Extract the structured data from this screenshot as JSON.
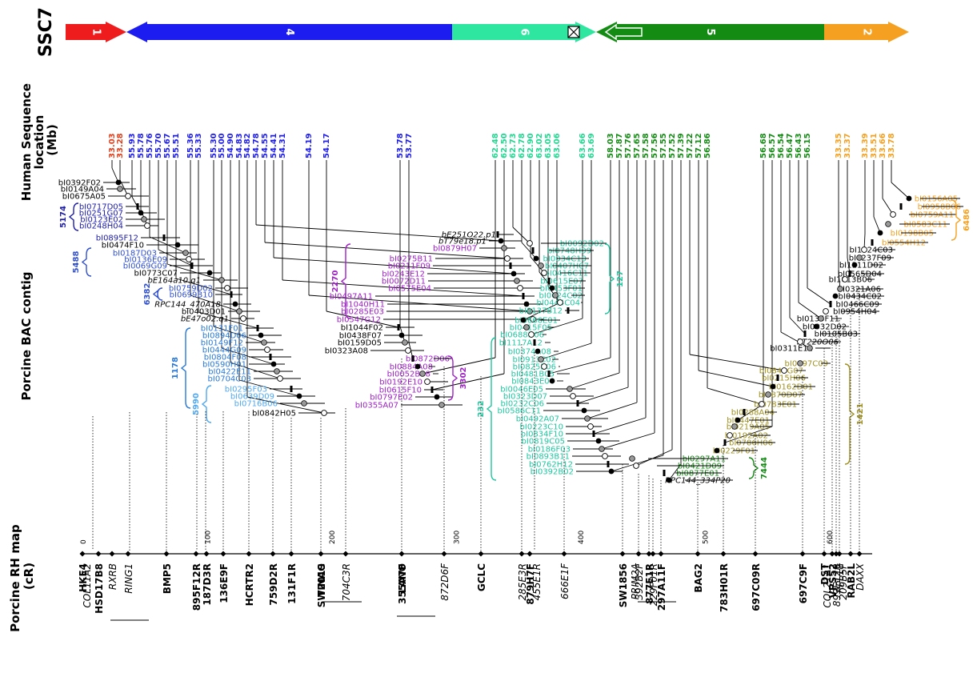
{
  "chromosome": "SSC7",
  "axis_titles": {
    "human": [
      "Human Sequence",
      "location",
      "(Mb)"
    ],
    "bac": "Porcine BAC contig",
    "rh": [
      "Porcine RH map",
      "(cR)"
    ]
  },
  "segments": [
    {
      "label": "1",
      "color": "#ee1c1c",
      "dir": "right"
    },
    {
      "label": "4",
      "color": "#1c1cf0",
      "dir": "left"
    },
    {
      "label": "6",
      "color": "#2ee6a0",
      "dir": "right"
    },
    {
      "label": "5",
      "color": "#148c14",
      "dir": "left"
    },
    {
      "label": "2",
      "color": "#f5a020",
      "dir": "right"
    }
  ],
  "human_locations": [
    {
      "v": "33.03",
      "c": "#e0401c"
    },
    {
      "v": "33.28",
      "c": "#e0401c"
    },
    {
      "v": "55.93",
      "c": "#1c1cf0"
    },
    {
      "v": "55.78",
      "c": "#1c1cf0"
    },
    {
      "v": "55.76",
      "c": "#1c1cf0"
    },
    {
      "v": "55.70",
      "c": "#1c1cf0"
    },
    {
      "v": "55.67",
      "c": "#1c1cf0"
    },
    {
      "v": "55.51",
      "c": "#1c1cf0"
    },
    {
      "v": "55.36",
      "c": "#1c1cf0"
    },
    {
      "v": "55.33",
      "c": "#1c1cf0"
    },
    {
      "v": "55.30",
      "c": "#1c1cf0"
    },
    {
      "v": "55.00",
      "c": "#1c1cf0"
    },
    {
      "v": "54.90",
      "c": "#1c1cf0"
    },
    {
      "v": "54.83",
      "c": "#1c1cf0"
    },
    {
      "v": "54.82",
      "c": "#1c1cf0"
    },
    {
      "v": "54.78",
      "c": "#1c1cf0"
    },
    {
      "v": "54.55",
      "c": "#1c1cf0"
    },
    {
      "v": "54.41",
      "c": "#1c1cf0"
    },
    {
      "v": "54.31",
      "c": "#1c1cf0"
    },
    {
      "v": "54.19",
      "c": "#1c1cf0"
    },
    {
      "v": "54.17",
      "c": "#1c1cf0"
    },
    {
      "v": "53.78",
      "c": "#1c1cf0"
    },
    {
      "v": "53.77",
      "c": "#1c1cf0"
    },
    {
      "v": "62.48",
      "c": "#20d890"
    },
    {
      "v": "62.50",
      "c": "#20d890"
    },
    {
      "v": "62.73",
      "c": "#20d890"
    },
    {
      "v": "62.78",
      "c": "#20d890"
    },
    {
      "v": "62.90",
      "c": "#20d890"
    },
    {
      "v": "63.02",
      "c": "#20d890"
    },
    {
      "v": "63.05",
      "c": "#20d890"
    },
    {
      "v": "63.06",
      "c": "#20d890"
    },
    {
      "v": "63.66",
      "c": "#20d890"
    },
    {
      "v": "63.69",
      "c": "#20d890"
    },
    {
      "v": "58.03",
      "c": "#148c14"
    },
    {
      "v": "57.87",
      "c": "#148c14"
    },
    {
      "v": "57.76",
      "c": "#148c14"
    },
    {
      "v": "57.65",
      "c": "#148c14"
    },
    {
      "v": "57.58",
      "c": "#148c14"
    },
    {
      "v": "57.56",
      "c": "#148c14"
    },
    {
      "v": "57.55",
      "c": "#148c14"
    },
    {
      "v": "57.52",
      "c": "#148c14"
    },
    {
      "v": "57.39",
      "c": "#148c14"
    },
    {
      "v": "57.22",
      "c": "#148c14"
    },
    {
      "v": "57.12",
      "c": "#148c14"
    },
    {
      "v": "56.86",
      "c": "#148c14"
    },
    {
      "v": "56.68",
      "c": "#148c14"
    },
    {
      "v": "56.57",
      "c": "#148c14"
    },
    {
      "v": "56.54",
      "c": "#148c14"
    },
    {
      "v": "56.47",
      "c": "#148c14"
    },
    {
      "v": "56.43",
      "c": "#148c14"
    },
    {
      "v": "56.15",
      "c": "#148c14"
    },
    {
      "v": "33.35",
      "c": "#f5a020"
    },
    {
      "v": "33.37",
      "c": "#f5a020"
    },
    {
      "v": "33.39",
      "c": "#f5a020"
    },
    {
      "v": "33.51",
      "c": "#f5a020"
    },
    {
      "v": "33.66",
      "c": "#f5a020"
    },
    {
      "v": "33.78",
      "c": "#f5a020"
    }
  ],
  "bac_clones": [
    {
      "n": "bI0392F02",
      "c": "#000000"
    },
    {
      "n": "bI0149A04",
      "c": "#000000"
    },
    {
      "n": "bI0675A05",
      "c": "#000000"
    },
    {
      "n": "bI0717D05",
      "c": "#1c1ca8"
    },
    {
      "n": "bI0251G07",
      "c": "#1c1ca8"
    },
    {
      "n": "bI0123E02",
      "c": "#1c1ca8"
    },
    {
      "n": "bI0248H04",
      "c": "#1c1ca8"
    },
    {
      "n": "bI0895F12",
      "c": "#1c1ca8"
    },
    {
      "n": "bI0474F10",
      "c": "#000000"
    },
    {
      "n": "bI0187D03",
      "c": "#3050d0"
    },
    {
      "n": "bI0136E09",
      "c": "#3050d0"
    },
    {
      "n": "bI0069G09",
      "c": "#3050d0"
    },
    {
      "n": "bI0773C07",
      "c": "#000000"
    },
    {
      "n": "bE164a10.q1",
      "c": "#000000",
      "i": true
    },
    {
      "n": "bI0759D02",
      "c": "#3050d0"
    },
    {
      "n": "bI0699B10",
      "c": "#3050d0"
    },
    {
      "n": "RPC144_470A18",
      "c": "#000000",
      "i": true
    },
    {
      "n": "bI0403D01",
      "c": "#000000"
    },
    {
      "n": "bE47o02.q1",
      "c": "#000000",
      "i": true
    },
    {
      "n": "bI0131F01",
      "c": "#2878d8"
    },
    {
      "n": "bI0894D06",
      "c": "#2878d8"
    },
    {
      "n": "bI0149F12",
      "c": "#2878d8"
    },
    {
      "n": "bI0444G09",
      "c": "#2878d8"
    },
    {
      "n": "bI0804F08",
      "c": "#2878d8"
    },
    {
      "n": "bI0590H01",
      "c": "#2878d8"
    },
    {
      "n": "bI0422E11",
      "c": "#2878d8"
    },
    {
      "n": "bI0704C03",
      "c": "#2878d8"
    },
    {
      "n": "bI0295F03",
      "c": "#50a8f0"
    },
    {
      "n": "bI0639D09",
      "c": "#50a8f0"
    },
    {
      "n": "bI0716B06",
      "c": "#50a8f0"
    },
    {
      "n": "bI0842H05",
      "c": "#000000"
    },
    {
      "n": "bE251O22.p1",
      "c": "#000000",
      "i": true
    },
    {
      "n": "bT79e18.p1",
      "c": "#000000",
      "i": true
    },
    {
      "n": "bI0879H07",
      "c": "#a020c8"
    },
    {
      "n": "bI0275B11",
      "c": "#a020c8"
    },
    {
      "n": "bI0211F09",
      "c": "#a020c8"
    },
    {
      "n": "bI0243E12",
      "c": "#a020c8"
    },
    {
      "n": "bI0072D11",
      "c": "#a020c8"
    },
    {
      "n": "bI0575E04",
      "c": "#a020c8"
    },
    {
      "n": "bI0497A11",
      "c": "#a020c8"
    },
    {
      "n": "bI1040H11",
      "c": "#a020c8"
    },
    {
      "n": "bI0285E03",
      "c": "#a020c8"
    },
    {
      "n": "bI0547G12",
      "c": "#a020c8"
    },
    {
      "n": "bI1044F02",
      "c": "#000000"
    },
    {
      "n": "bI0438F07",
      "c": "#000000"
    },
    {
      "n": "bI0159D05",
      "c": "#000000"
    },
    {
      "n": "bI0323A08",
      "c": "#000000"
    },
    {
      "n": "bI0872D06",
      "c": "#a020c8"
    },
    {
      "n": "bI0884A08",
      "c": "#a020c8"
    },
    {
      "n": "bI0052B08",
      "c": "#a020c8"
    },
    {
      "n": "bI0192E10",
      "c": "#a020c8"
    },
    {
      "n": "bI0615F10",
      "c": "#a020c8"
    },
    {
      "n": "bI0797E02",
      "c": "#a020c8"
    },
    {
      "n": "bI0355A07",
      "c": "#a020c8"
    },
    {
      "n": "bI0092D02",
      "c": "#20c8a0"
    },
    {
      "n": "bI0748H09",
      "c": "#20c8a0"
    },
    {
      "n": "bI0034C10",
      "c": "#20c8a0"
    },
    {
      "n": "bI0407H07",
      "c": "#20c8a0"
    },
    {
      "n": "bI0416C11",
      "c": "#20c8a0"
    },
    {
      "n": "bI0615E07",
      "c": "#20c8a0"
    },
    {
      "n": "bI0453F01",
      "c": "#20c8a0"
    },
    {
      "n": "bI0624C02",
      "c": "#20c8a0"
    },
    {
      "n": "bI0444C04",
      "c": "#20c8a0"
    },
    {
      "n": "bI0137B12",
      "c": "#20c8a0"
    },
    {
      "n": "bI0666E01",
      "c": "#20c8a0"
    },
    {
      "n": "bI0415F05",
      "c": "#20c8a0"
    },
    {
      "n": "bI0688H06",
      "c": "#20c8a0"
    },
    {
      "n": "bI1117A12",
      "c": "#20c8a0"
    },
    {
      "n": "bI0374A08",
      "c": "#20c8a0"
    },
    {
      "n": "bI0913C02",
      "c": "#20c8a0"
    },
    {
      "n": "bI0825B06",
      "c": "#20c8a0"
    },
    {
      "n": "bI0481B05",
      "c": "#20c8a0"
    },
    {
      "n": "bI0843E04",
      "c": "#20c8a0"
    },
    {
      "n": "bI0046E05",
      "c": "#20c8a0"
    },
    {
      "n": "bI0323D07",
      "c": "#20c8a0"
    },
    {
      "n": "bI0232C06",
      "c": "#20c8a0"
    },
    {
      "n": "bI0586C11",
      "c": "#20c8a0"
    },
    {
      "n": "bI0492A07",
      "c": "#20c8a0"
    },
    {
      "n": "bI0223C10",
      "c": "#20c8a0"
    },
    {
      "n": "bI0834F10",
      "c": "#20c8a0"
    },
    {
      "n": "bI0819C05",
      "c": "#20c8a0"
    },
    {
      "n": "bI0186F03",
      "c": "#20c8a0"
    },
    {
      "n": "bI0893B11",
      "c": "#20c8a0"
    },
    {
      "n": "bI0762H12",
      "c": "#20c8a0"
    },
    {
      "n": "bI0392B02",
      "c": "#20c8a0"
    },
    {
      "n": "bI0297A11",
      "c": "#148c14"
    },
    {
      "n": "bI0421D09",
      "c": "#148c14"
    },
    {
      "n": "bI0877E01",
      "c": "#148c14"
    },
    {
      "n": "RPC144_334P20",
      "c": "#000000",
      "i": true
    },
    {
      "n": "bI0697C09",
      "c": "#a09020"
    },
    {
      "n": "bI0848G07",
      "c": "#a09020"
    },
    {
      "n": "bI0215H06",
      "c": "#a09020"
    },
    {
      "n": "bI0162D01",
      "c": "#a09020"
    },
    {
      "n": "bI0870D07",
      "c": "#a09020"
    },
    {
      "n": "bI0783E01",
      "c": "#a09020"
    },
    {
      "n": "bI0288A04",
      "c": "#a09020"
    },
    {
      "n": "bI0447E01",
      "c": "#a09020"
    },
    {
      "n": "bI0219A05",
      "c": "#a09020"
    },
    {
      "n": "bI0192A02",
      "c": "#a09020"
    },
    {
      "n": "bI0786H06",
      "c": "#a09020"
    },
    {
      "n": "bI0229F01",
      "c": "#a09020"
    },
    {
      "n": "bI0311E12",
      "c": "#000000"
    },
    {
      "n": "bT220O06",
      "c": "#000000",
      "i": true
    },
    {
      "n": "bI0105B03",
      "c": "#000000"
    },
    {
      "n": "bI0032D02",
      "c": "#000000"
    },
    {
      "n": "bI0135F11",
      "c": "#000000"
    },
    {
      "n": "bI0954H04",
      "c": "#000000"
    },
    {
      "n": "bI0466C09",
      "c": "#000000"
    },
    {
      "n": "bI0434C02",
      "c": "#000000"
    },
    {
      "n": "bI0321A06",
      "c": "#000000"
    },
    {
      "n": "bI1013B06",
      "c": "#000000"
    },
    {
      "n": "bI0565D04",
      "c": "#000000"
    },
    {
      "n": "bI1111D02",
      "c": "#000000"
    },
    {
      "n": "bI0237F09",
      "c": "#000000"
    },
    {
      "n": "bI1024C03",
      "c": "#000000"
    },
    {
      "n": "bI0554H12",
      "c": "#f5a020"
    },
    {
      "n": "bI0198B05",
      "c": "#f5a020"
    },
    {
      "n": "bI0583C11",
      "c": "#f5a020"
    },
    {
      "n": "bI0759A11",
      "c": "#f5a020"
    },
    {
      "n": "bI0958B06",
      "c": "#f5a020"
    },
    {
      "n": "bI0156A05",
      "c": "#f5a020"
    }
  ],
  "brackets": [
    {
      "label": "5174",
      "c": "#1c1ca8"
    },
    {
      "label": "5488",
      "c": "#3050d0"
    },
    {
      "label": "6382",
      "c": "#3050d0"
    },
    {
      "label": "1178",
      "c": "#2878d8"
    },
    {
      "label": "5990",
      "c": "#50a8f0"
    },
    {
      "label": "2270",
      "c": "#a020c8"
    },
    {
      "label": "3302",
      "c": "#a020c8"
    },
    {
      "label": "127",
      "c": "#20c8a0"
    },
    {
      "label": "232",
      "c": "#20c8a0"
    },
    {
      "label": "7444",
      "c": "#148c14"
    },
    {
      "label": "1421",
      "c": "#a09020"
    },
    {
      "label": "6486",
      "c": "#f5a020"
    }
  ],
  "rh_ticks": [
    0,
    100,
    200,
    300,
    400,
    500,
    600
  ],
  "rh_markers": [
    {
      "n": "HKE4",
      "s": "b"
    },
    {
      "n": "COL11A2",
      "s": "i"
    },
    {
      "n": "HSD17B8",
      "s": "b"
    },
    {
      "n": "RXRB",
      "s": "i"
    },
    {
      "n": "RING1",
      "s": "i"
    },
    {
      "n": "BMP5",
      "s": "b"
    },
    {
      "n": "895F12R",
      "s": "b"
    },
    {
      "n": "187D3R",
      "s": "b"
    },
    {
      "n": "136E9F",
      "s": "b"
    },
    {
      "n": "HCRTR2",
      "s": "b"
    },
    {
      "n": "759D2R",
      "s": "b"
    },
    {
      "n": "131F1R",
      "s": "b"
    },
    {
      "n": "SW2019",
      "s": "b"
    },
    {
      "n": "TINAG",
      "s": "b"
    },
    {
      "n": "704C3R",
      "s": "i"
    },
    {
      "n": "355A7F",
      "s": "b"
    },
    {
      "n": "LANO",
      "s": "b"
    },
    {
      "n": "872D6F",
      "s": "i"
    },
    {
      "n": "GCLC",
      "s": "b"
    },
    {
      "n": "285E3R",
      "s": "i"
    },
    {
      "n": "879H7F",
      "s": "b"
    },
    {
      "n": "455E1R",
      "s": "i"
    },
    {
      "n": "666E1F",
      "s": "i"
    },
    {
      "n": "SW1856",
      "s": "b"
    },
    {
      "n": "PRIM2A",
      "s": "i"
    },
    {
      "n": "392B2F",
      "s": "i"
    },
    {
      "n": "877E1R",
      "s": "b"
    },
    {
      "n": "229F01R",
      "s": "i"
    },
    {
      "n": "297A11F",
      "s": "b"
    },
    {
      "n": "BAG2",
      "s": "b"
    },
    {
      "n": "783H01R",
      "s": "b"
    },
    {
      "n": "697C09R",
      "s": "b"
    },
    {
      "n": "697C9F",
      "s": "b"
    },
    {
      "n": "DST",
      "s": "b"
    },
    {
      "n": "COL21A1",
      "s": "i"
    },
    {
      "n": "VPS52",
      "s": "b"
    },
    {
      "n": "899E12R",
      "s": "i"
    },
    {
      "n": "RPL18",
      "s": "i"
    },
    {
      "n": "209B5F",
      "s": "i"
    },
    {
      "n": "RAB2L",
      "s": "b"
    },
    {
      "n": "DAXX",
      "s": "i"
    }
  ]
}
